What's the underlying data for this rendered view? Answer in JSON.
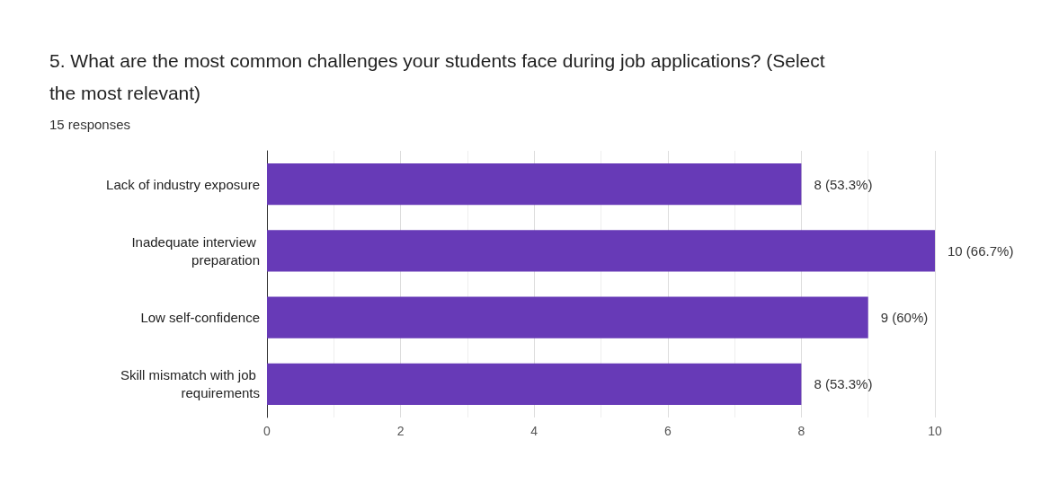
{
  "chart_data": {
    "type": "bar",
    "orientation": "horizontal",
    "title": "5. What are the most common challenges your students face during job applications? (Select the most relevant)",
    "subtitle": "15 responses",
    "categories": [
      "Lack of industry exposure",
      "Inadequate interview preparation",
      "Low self-confidence",
      "Skill mismatch with job requirements"
    ],
    "values": [
      8,
      10,
      9,
      8
    ],
    "value_labels": [
      "8 (53.3%)",
      "10 (66.7%)",
      "9 (60%)",
      "8 (53.3%)"
    ],
    "color": "#673ab7",
    "xlim": [
      0,
      10
    ],
    "xticks": [
      0,
      2,
      4,
      6,
      8,
      10
    ],
    "grid": "x"
  }
}
